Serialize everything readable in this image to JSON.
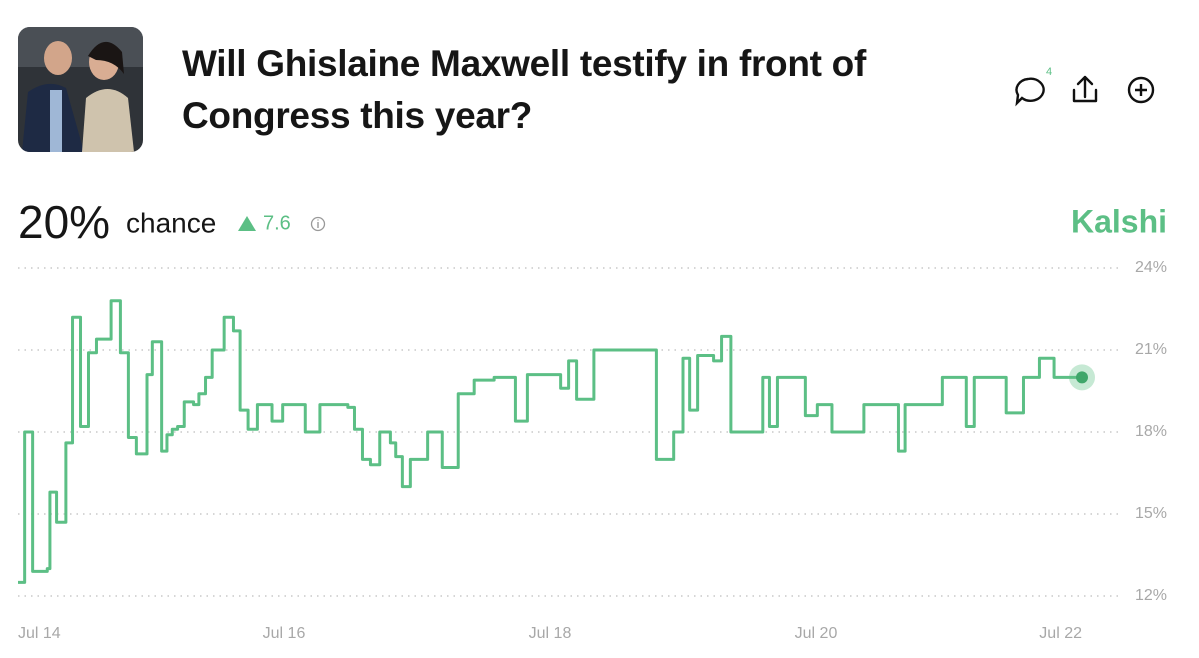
{
  "header": {
    "title": "Will Ghislaine Maxwell testify in front of Congress this year?",
    "comment_count": 4
  },
  "summary": {
    "probability": "20%",
    "label": "chance",
    "change": 7.6
  },
  "brand": "Kalshi",
  "chart_data": {
    "type": "line",
    "step": true,
    "color": "#5cbf85",
    "grid": true,
    "x": [
      14.0,
      14.05,
      14.11,
      14.22,
      14.24,
      14.29,
      14.36,
      14.41,
      14.47,
      14.53,
      14.59,
      14.7,
      14.77,
      14.83,
      14.89,
      14.97,
      15.01,
      15.08,
      15.12,
      15.16,
      15.2,
      15.25,
      15.32,
      15.36,
      15.41,
      15.46,
      15.55,
      15.62,
      15.67,
      15.73,
      15.8,
      15.91,
      15.99,
      16.16,
      16.27,
      16.48,
      16.53,
      16.59,
      16.65,
      16.72,
      16.8,
      16.84,
      16.89,
      16.95,
      17.08,
      17.19,
      17.31,
      17.43,
      17.58,
      17.74,
      17.83,
      18.08,
      18.14,
      18.2,
      18.33,
      18.8,
      18.93,
      19.0,
      19.05,
      19.11,
      19.23,
      19.29,
      19.36,
      19.6,
      19.65,
      19.71,
      19.92,
      20.01,
      20.12,
      20.36,
      20.62,
      20.67,
      20.76,
      20.95,
      21.13,
      21.19,
      21.43,
      21.56,
      21.68,
      21.79,
      22.0
    ],
    "values": [
      12.5,
      18.0,
      12.9,
      13.0,
      15.8,
      14.7,
      17.6,
      22.2,
      18.2,
      20.9,
      21.4,
      22.8,
      20.9,
      17.8,
      17.2,
      20.1,
      21.3,
      17.3,
      17.9,
      18.1,
      18.2,
      19.1,
      19.0,
      19.4,
      20.0,
      21.0,
      22.2,
      21.7,
      18.8,
      18.1,
      19.0,
      18.4,
      19.0,
      18.0,
      19.0,
      18.9,
      18.1,
      17.0,
      16.8,
      18.0,
      17.6,
      17.1,
      16.0,
      17.0,
      18.0,
      16.7,
      19.4,
      19.9,
      20.0,
      18.4,
      20.1,
      19.6,
      20.6,
      19.2,
      21.0,
      17.0,
      18.0,
      20.7,
      18.8,
      20.8,
      20.6,
      21.5,
      18.0,
      20.0,
      18.2,
      20.0,
      18.6,
      19.0,
      18.0,
      19.0,
      17.3,
      19.0,
      19.0,
      20.0,
      18.2,
      20.0,
      18.7,
      20.0,
      20.7,
      20.0,
      20.0
    ],
    "xlim": [
      14,
      22
    ],
    "xticks": [
      {
        "value": 14,
        "label": "Jul 14"
      },
      {
        "value": 16,
        "label": "Jul 16"
      },
      {
        "value": 18,
        "label": "Jul 18"
      },
      {
        "value": 20,
        "label": "Jul 20"
      },
      {
        "value": 22,
        "label": "Jul 22"
      }
    ],
    "ylim": [
      12,
      24
    ],
    "yticks": [
      {
        "value": 12,
        "label": "12%"
      },
      {
        "value": 15,
        "label": "15%"
      },
      {
        "value": 18,
        "label": "18%"
      },
      {
        "value": 21,
        "label": "21%"
      },
      {
        "value": 24,
        "label": "24%"
      }
    ]
  }
}
